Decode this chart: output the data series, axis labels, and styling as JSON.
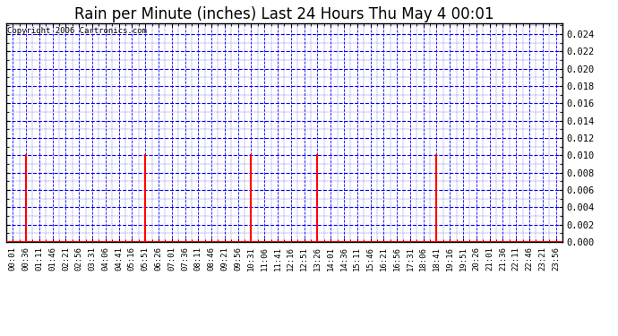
{
  "title": "Rain per Minute (inches) Last 24 Hours Thu May 4 00:01",
  "copyright": "Copyright 2006 Cartronics.com",
  "ylim": [
    0.0,
    0.0252
  ],
  "yticks": [
    0.0,
    0.002,
    0.004,
    0.006,
    0.008,
    0.01,
    0.012,
    0.014,
    0.016,
    0.018,
    0.02,
    0.022,
    0.024
  ],
  "bar_color": "#ff0000",
  "grid_color_major": "#0000ff",
  "grid_color_minor": "#0000cc",
  "background_color": "#ffffff",
  "rain_value": 0.01,
  "x_labels": [
    "00:01",
    "00:36",
    "01:11",
    "01:46",
    "02:21",
    "02:56",
    "03:31",
    "04:06",
    "04:41",
    "05:16",
    "05:51",
    "06:26",
    "07:01",
    "07:36",
    "08:11",
    "08:46",
    "09:21",
    "09:56",
    "10:31",
    "11:06",
    "11:41",
    "12:16",
    "12:51",
    "13:26",
    "14:01",
    "14:36",
    "15:11",
    "15:46",
    "16:21",
    "16:56",
    "17:31",
    "18:06",
    "18:41",
    "19:16",
    "19:51",
    "20:26",
    "21:01",
    "21:36",
    "22:11",
    "22:46",
    "23:21",
    "23:56"
  ],
  "rain_indices": [
    1,
    10,
    18,
    23,
    32
  ],
  "title_fontsize": 12,
  "tick_fontsize": 6.5,
  "ytick_fontsize": 7.5,
  "copyright_fontsize": 6.5
}
